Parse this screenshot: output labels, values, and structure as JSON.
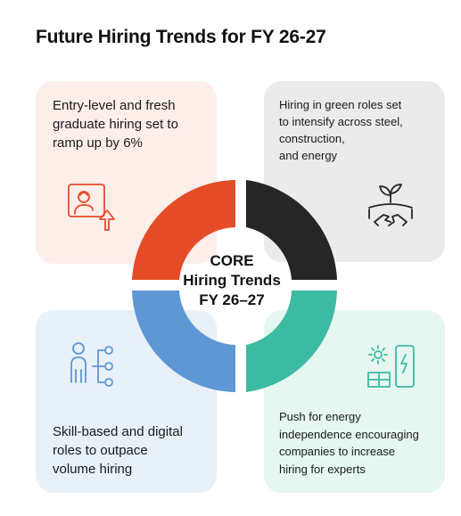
{
  "title": "Future Hiring Trends for FY 26-27",
  "center": {
    "line1": "CORE",
    "line2": "Hiring Trends",
    "line3": "FY 26–27"
  },
  "cards": {
    "top_left": {
      "text": "Entry-level and fresh\ngraduate hiring set to\nramp up by 6%",
      "icon": "candidate-growth-icon",
      "accent": "#e44c28",
      "background": "#fdeeea"
    },
    "top_right": {
      "text": "Hiring in green roles set\nto intensify across steel,\nconstruction,\nand energy",
      "icon": "green-handshake-icon",
      "accent": "#262626",
      "background": "#ebebeb"
    },
    "bottom_left": {
      "text": "Skill-based and digital\nroles to outpace\nvolume hiring",
      "icon": "skill-network-icon",
      "accent": "#5e97d3",
      "background": "#e8f0f8"
    },
    "bottom_right": {
      "text": "Push for energy\nindependence encouraging\ncompanies to increase\nhiring for experts",
      "icon": "solar-charging-icon",
      "accent": "#3dbba2",
      "background": "#e6f6f1"
    }
  }
}
